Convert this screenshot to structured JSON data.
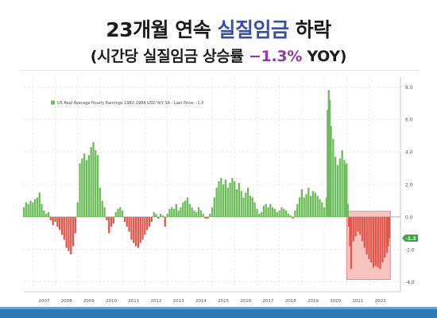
{
  "headline": {
    "line1_prefix": "23개월 연속 ",
    "line1_emphasis": "실질임금",
    "line1_suffix": " 하락",
    "line2_prefix": "(시간당 실질임금 상승률 ",
    "line2_emphasis": "−1.3%",
    "line2_suffix": " YOY)",
    "emphasis_color_1": "#3a4ea8",
    "emphasis_color_2": "#8e3aa8"
  },
  "colors": {
    "positive_bar": "#6cbd5a",
    "negative_bar": "#e2574c",
    "highlight_fill": "#f6b8b4",
    "highlight_stroke": "#e57a72",
    "last_price_tag": "#3aa845"
  },
  "chart_data": {
    "type": "bar",
    "legend": "US Real Average Hourly Earnings 1982-1984 USD YoY SA - Last Price: -1.3",
    "legend_position": "top-left",
    "y_axis_side": "right",
    "ylim": [
      -4.6,
      8.6
    ],
    "y_ticks": [
      "8.0",
      "6.0",
      "4.0",
      "2.0",
      "0.0",
      "-2.0",
      "-4.0"
    ],
    "y_tick_values": [
      8,
      6,
      4,
      2,
      0,
      -2,
      -4
    ],
    "last_price_label": "-1.3",
    "last_price_value": -1.3,
    "x_ticks": [
      "2007",
      "2008",
      "2009",
      "2010",
      "2011",
      "2012",
      "2013",
      "2014",
      "2015",
      "2016",
      "2017",
      "2018",
      "2019",
      "2020",
      "2021",
      "2022"
    ],
    "x_start": 2006.6,
    "x_end": 2023.4,
    "grid": true,
    "highlight_range": [
      2021.0,
      2022.95
    ],
    "series": [
      {
        "values": [
          [
            2006.6,
            0.6
          ],
          [
            2006.7,
            0.9
          ],
          [
            2006.8,
            0.8
          ],
          [
            2006.9,
            1.0
          ],
          [
            2007.0,
            0.9
          ],
          [
            2007.1,
            1.1
          ],
          [
            2007.2,
            1.2
          ],
          [
            2007.3,
            1.5
          ],
          [
            2007.4,
            0.8
          ],
          [
            2007.5,
            0.4
          ],
          [
            2007.6,
            0.2
          ],
          [
            2007.7,
            0.3
          ],
          [
            2007.8,
            -0.2
          ],
          [
            2007.9,
            -0.5
          ],
          [
            2008.0,
            -0.3
          ],
          [
            2008.1,
            -0.6
          ],
          [
            2008.2,
            -0.8
          ],
          [
            2008.3,
            -1.1
          ],
          [
            2008.4,
            -1.4
          ],
          [
            2008.5,
            -1.9
          ],
          [
            2008.6,
            -2.1
          ],
          [
            2008.7,
            -2.3
          ],
          [
            2008.8,
            -1.8
          ],
          [
            2008.9,
            -1.0
          ],
          [
            2009.0,
            0.9
          ],
          [
            2009.1,
            3.3
          ],
          [
            2009.2,
            3.6
          ],
          [
            2009.3,
            3.9
          ],
          [
            2009.4,
            3.5
          ],
          [
            2009.5,
            3.8
          ],
          [
            2009.6,
            4.3
          ],
          [
            2009.7,
            4.6
          ],
          [
            2009.8,
            4.1
          ],
          [
            2009.9,
            3.8
          ],
          [
            2010.0,
            1.8
          ],
          [
            2010.1,
            1.0
          ],
          [
            2010.2,
            0.6
          ],
          [
            2010.3,
            -0.2
          ],
          [
            2010.4,
            -1.0
          ],
          [
            2010.5,
            -0.6
          ],
          [
            2010.6,
            -0.4
          ],
          [
            2010.7,
            0.3
          ],
          [
            2010.8,
            0.5
          ],
          [
            2010.9,
            0.6
          ],
          [
            2011.0,
            0.4
          ],
          [
            2011.1,
            -0.3
          ],
          [
            2011.2,
            -0.6
          ],
          [
            2011.3,
            -0.9
          ],
          [
            2011.4,
            -1.4
          ],
          [
            2011.5,
            -1.6
          ],
          [
            2011.6,
            -1.8
          ],
          [
            2011.7,
            -1.9
          ],
          [
            2011.8,
            -1.6
          ],
          [
            2011.9,
            -1.4
          ],
          [
            2012.0,
            -1.1
          ],
          [
            2012.1,
            -0.8
          ],
          [
            2012.2,
            -0.6
          ],
          [
            2012.3,
            -0.3
          ],
          [
            2012.4,
            0.3
          ],
          [
            2012.5,
            0.2
          ],
          [
            2012.6,
            -0.1
          ],
          [
            2012.7,
            0.2
          ],
          [
            2012.8,
            0.1
          ],
          [
            2012.9,
            -0.6
          ],
          [
            2013.0,
            0.2
          ],
          [
            2013.1,
            0.5
          ],
          [
            2013.2,
            0.6
          ],
          [
            2013.3,
            0.5
          ],
          [
            2013.4,
            0.8
          ],
          [
            2013.5,
            0.4
          ],
          [
            2013.6,
            0.6
          ],
          [
            2013.7,
            0.9
          ],
          [
            2013.8,
            1.0
          ],
          [
            2013.9,
            1.2
          ],
          [
            2014.0,
            0.8
          ],
          [
            2014.1,
            0.6
          ],
          [
            2014.2,
            0.4
          ],
          [
            2014.3,
            0.3
          ],
          [
            2014.4,
            0.6
          ],
          [
            2014.5,
            0.4
          ],
          [
            2014.6,
            0.2
          ],
          [
            2014.7,
            -0.1
          ],
          [
            2014.8,
            -0.1
          ],
          [
            2014.9,
            0.2
          ],
          [
            2015.0,
            0.6
          ],
          [
            2015.1,
            1.2
          ],
          [
            2015.2,
            1.8
          ],
          [
            2015.3,
            2.2
          ],
          [
            2015.4,
            2.4
          ],
          [
            2015.5,
            2.0
          ],
          [
            2015.6,
            2.3
          ],
          [
            2015.7,
            1.8
          ],
          [
            2015.8,
            2.1
          ],
          [
            2015.9,
            2.4
          ],
          [
            2016.0,
            2.2
          ],
          [
            2016.1,
            1.7
          ],
          [
            2016.2,
            2.1
          ],
          [
            2016.3,
            1.6
          ],
          [
            2016.4,
            1.2
          ],
          [
            2016.5,
            1.5
          ],
          [
            2016.6,
            1.8
          ],
          [
            2016.7,
            1.3
          ],
          [
            2016.8,
            1.2
          ],
          [
            2016.9,
            0.9
          ],
          [
            2017.0,
            0.5
          ],
          [
            2017.1,
            0.2
          ],
          [
            2017.2,
            0.3
          ],
          [
            2017.3,
            0.7
          ],
          [
            2017.4,
            0.8
          ],
          [
            2017.5,
            0.6
          ],
          [
            2017.6,
            0.8
          ],
          [
            2017.7,
            0.6
          ],
          [
            2017.8,
            0.5
          ],
          [
            2017.9,
            0.3
          ],
          [
            2018.0,
            0.4
          ],
          [
            2018.1,
            0.6
          ],
          [
            2018.2,
            0.5
          ],
          [
            2018.3,
            0.4
          ],
          [
            2018.4,
            0.2
          ],
          [
            2018.5,
            0.1
          ],
          [
            2018.6,
            -0.1
          ],
          [
            2018.7,
            0.4
          ],
          [
            2018.8,
            0.8
          ],
          [
            2018.9,
            1.2
          ],
          [
            2019.0,
            1.7
          ],
          [
            2019.1,
            1.2
          ],
          [
            2019.2,
            1.4
          ],
          [
            2019.3,
            1.8
          ],
          [
            2019.4,
            1.3
          ],
          [
            2019.5,
            1.6
          ],
          [
            2019.6,
            1.5
          ],
          [
            2019.7,
            1.3
          ],
          [
            2019.8,
            1.1
          ],
          [
            2019.9,
            0.9
          ],
          [
            2020.0,
            0.6
          ],
          [
            2020.1,
            1.2
          ],
          [
            2020.15,
            6.6
          ],
          [
            2020.2,
            7.8
          ],
          [
            2020.25,
            7.2
          ],
          [
            2020.3,
            5.6
          ],
          [
            2020.4,
            4.8
          ],
          [
            2020.5,
            3.7
          ],
          [
            2020.6,
            3.2
          ],
          [
            2020.7,
            3.6
          ],
          [
            2020.8,
            4.1
          ],
          [
            2020.9,
            3.5
          ],
          [
            2020.95,
            3.2
          ],
          [
            2021.0,
            3.3
          ],
          [
            2021.05,
            0.8
          ],
          [
            2021.1,
            -0.6
          ],
          [
            2021.15,
            -1.8
          ],
          [
            2021.2,
            -3.2
          ],
          [
            2021.3,
            -1.5
          ],
          [
            2021.4,
            -1.2
          ],
          [
            2021.5,
            -0.9
          ],
          [
            2021.6,
            -1.1
          ],
          [
            2021.7,
            -1.5
          ],
          [
            2021.8,
            -1.9
          ],
          [
            2021.9,
            -2.3
          ],
          [
            2022.0,
            -2.6
          ],
          [
            2022.1,
            -2.8
          ],
          [
            2022.2,
            -3.1
          ],
          [
            2022.3,
            -3.0
          ],
          [
            2022.4,
            -3.1
          ],
          [
            2022.5,
            -3.2
          ],
          [
            2022.6,
            -2.8
          ],
          [
            2022.7,
            -2.5
          ],
          [
            2022.8,
            -2.2
          ],
          [
            2022.85,
            -1.8
          ],
          [
            2022.9,
            -1.3
          ]
        ]
      }
    ]
  }
}
